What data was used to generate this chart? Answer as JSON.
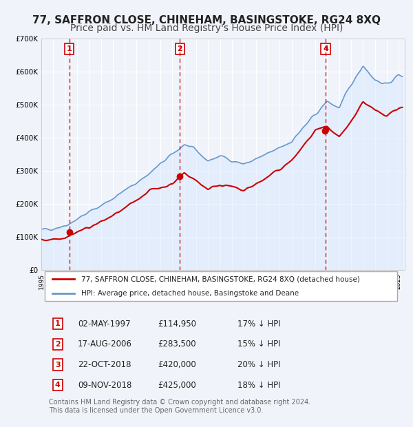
{
  "title": "77, SAFFRON CLOSE, CHINEHAM, BASINGSTOKE, RG24 8XQ",
  "subtitle": "Price paid vs. HM Land Registry's House Price Index (HPI)",
  "xlabel": "",
  "ylabel": "",
  "ylim": [
    0,
    700000
  ],
  "yticks": [
    0,
    100000,
    200000,
    300000,
    400000,
    500000,
    600000,
    700000
  ],
  "ytick_labels": [
    "£0",
    "£100K",
    "£200K",
    "£300K",
    "£400K",
    "£500K",
    "£600K",
    "£700K"
  ],
  "xlim_start": 1995.0,
  "xlim_end": 2025.5,
  "xtick_years": [
    1995,
    1996,
    1997,
    1998,
    1999,
    2000,
    2001,
    2002,
    2003,
    2004,
    2005,
    2006,
    2007,
    2008,
    2009,
    2010,
    2011,
    2012,
    2013,
    2014,
    2015,
    2016,
    2017,
    2018,
    2019,
    2020,
    2021,
    2022,
    2023,
    2024,
    2025
  ],
  "background_color": "#f0f4fa",
  "plot_bg_color": "#f0f4fa",
  "grid_color": "#ffffff",
  "sale_color": "#cc0000",
  "hpi_color": "#6699cc",
  "hpi_fill_color": "#cce0ff",
  "vline_color": "#cc0000",
  "marker_color": "#cc0000",
  "legend_box_color": "#ffffff",
  "purchase_points": [
    {
      "label": "1",
      "year": 1997.34,
      "price": 114950
    },
    {
      "label": "2",
      "year": 2006.63,
      "price": 283500
    },
    {
      "label": "3",
      "year": 2018.81,
      "price": 420000
    },
    {
      "label": "4",
      "year": 2018.86,
      "price": 425000
    }
  ],
  "vline_labels_shown": [
    "1",
    "2",
    "4"
  ],
  "table_rows": [
    {
      "num": "1",
      "date": "02-MAY-1997",
      "price": "£114,950",
      "hpi": "17% ↓ HPI"
    },
    {
      "num": "2",
      "date": "17-AUG-2006",
      "price": "£283,500",
      "hpi": "15% ↓ HPI"
    },
    {
      "num": "3",
      "date": "22-OCT-2018",
      "price": "£420,000",
      "hpi": "20% ↓ HPI"
    },
    {
      "num": "4",
      "date": "09-NOV-2018",
      "price": "£425,000",
      "hpi": "18% ↓ HPI"
    }
  ],
  "legend_entries": [
    "77, SAFFRON CLOSE, CHINEHAM, BASINGSTOKE, RG24 8XQ (detached house)",
    "HPI: Average price, detached house, Basingstoke and Deane"
  ],
  "footer_text": "Contains HM Land Registry data © Crown copyright and database right 2024.\nThis data is licensed under the Open Government Licence v3.0.",
  "title_fontsize": 11,
  "subtitle_fontsize": 10,
  "axis_fontsize": 8,
  "legend_fontsize": 8,
  "table_fontsize": 8.5,
  "footer_fontsize": 7
}
